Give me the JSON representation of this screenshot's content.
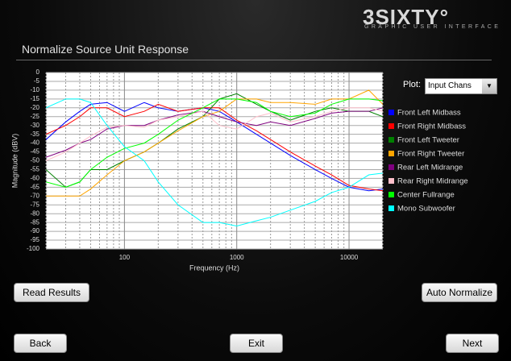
{
  "header": {
    "logo": "3SIXTY°",
    "logo_subtitle": "GRAPHIC USER INTERFACE",
    "title": "Normalize Source Unit Response"
  },
  "plot_selector": {
    "label": "Plot:",
    "value": "Input Chans"
  },
  "buttons": {
    "read_results": "Read Results",
    "auto_normalize": "Auto Normalize",
    "back": "Back",
    "exit": "Exit",
    "next": "Next"
  },
  "chart_data": {
    "type": "line",
    "x_label": "Frequency (Hz)",
    "y_label": "Magnitude (dBV)",
    "log_x": true,
    "grid": true,
    "xlim": [
      20,
      20000
    ],
    "ylim": [
      -100,
      0
    ],
    "xticks": [
      100,
      1000,
      10000
    ],
    "x_minor_ticks": [
      20,
      30,
      40,
      50,
      60,
      70,
      80,
      90,
      200,
      300,
      400,
      500,
      600,
      700,
      800,
      900,
      2000,
      3000,
      4000,
      5000,
      6000,
      7000,
      8000,
      9000,
      20000
    ],
    "yticks": [
      0,
      -5,
      -10,
      -15,
      -20,
      -25,
      -30,
      -35,
      -40,
      -45,
      -50,
      -55,
      -60,
      -65,
      -70,
      -75,
      -80,
      -85,
      -90,
      -95,
      -100
    ],
    "x": [
      20,
      30,
      40,
      50,
      70,
      100,
      150,
      200,
      300,
      500,
      700,
      1000,
      1500,
      2000,
      3000,
      5000,
      7000,
      10000,
      15000,
      20000
    ],
    "series": [
      {
        "name": "Front Left Midbass",
        "color": "#0000ff",
        "values": [
          -38,
          -28,
          -22,
          -18,
          -17,
          -22,
          -17,
          -20,
          -22,
          -20,
          -22,
          -28,
          -35,
          -40,
          -47,
          -55,
          -60,
          -65,
          -67,
          -66
        ]
      },
      {
        "name": "Front Right Midbass",
        "color": "#ff0000",
        "values": [
          -35,
          -30,
          -25,
          -20,
          -20,
          -25,
          -22,
          -18,
          -22,
          -20,
          -20,
          -27,
          -33,
          -38,
          -45,
          -53,
          -58,
          -64,
          -66,
          -67
        ]
      },
      {
        "name": "Front Left Tweeter",
        "color": "#008000",
        "values": [
          -55,
          -65,
          -62,
          -55,
          -55,
          -50,
          -45,
          -40,
          -32,
          -25,
          -15,
          -12,
          -18,
          -22,
          -27,
          -22,
          -20,
          -22,
          -22,
          -25
        ]
      },
      {
        "name": "Front Right Tweeter",
        "color": "#ffa500",
        "values": [
          -70,
          -70,
          -70,
          -66,
          -58,
          -50,
          -45,
          -40,
          -33,
          -25,
          -22,
          -15,
          -15,
          -17,
          -17,
          -18,
          -15,
          -15,
          -10,
          -18
        ]
      },
      {
        "name": "Rear Left Midrange",
        "color": "#800080",
        "values": [
          -48,
          -44,
          -40,
          -38,
          -32,
          -30,
          -30,
          -27,
          -24,
          -22,
          -25,
          -28,
          -30,
          -28,
          -30,
          -26,
          -23,
          -22,
          -22,
          -20
        ]
      },
      {
        "name": "Rear Right Midrange",
        "color": "#ffc0cb",
        "values": [
          -50,
          -45,
          -40,
          -36,
          -31,
          -30,
          -31,
          -27,
          -25,
          -22,
          -30,
          -32,
          -25,
          -23,
          -28,
          -25,
          -22,
          -20,
          -20,
          -22
        ]
      },
      {
        "name": "Center Fullrange",
        "color": "#00ff00",
        "values": [
          -62,
          -65,
          -62,
          -55,
          -48,
          -43,
          -40,
          -35,
          -27,
          -20,
          -15,
          -15,
          -17,
          -22,
          -25,
          -23,
          -18,
          -15,
          -15,
          -16
        ]
      },
      {
        "name": "Mono Subwoofer",
        "color": "#00ffff",
        "values": [
          -20,
          -15,
          -15,
          -17,
          -30,
          -42,
          -50,
          -62,
          -75,
          -85,
          -85,
          -87,
          -84,
          -82,
          -78,
          -73,
          -68,
          -65,
          -58,
          -57
        ]
      }
    ]
  }
}
